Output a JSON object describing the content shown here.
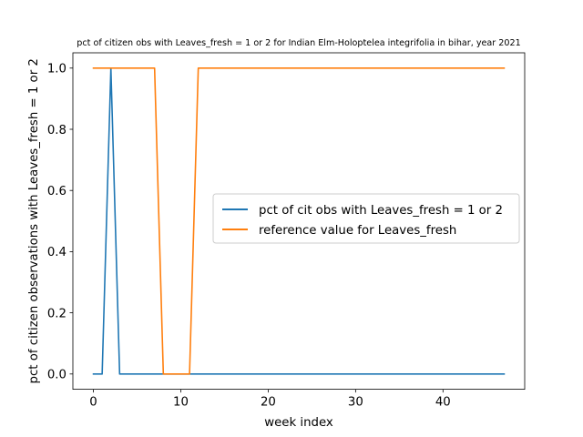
{
  "chart_data": {
    "type": "line",
    "title": "pct of citizen obs with Leaves_fresh = 1 or 2 for Indian Elm-Holoptelea integrifolia in bihar, year 2021",
    "xlabel": "week index",
    "ylabel": "pct of citizen observations with Leaves_fresh = 1 or 2",
    "xlim": [
      -2.35,
      49.35
    ],
    "ylim": [
      -0.05,
      1.05
    ],
    "xticks": [
      0,
      10,
      20,
      30,
      40
    ],
    "xtick_labels": [
      "0",
      "10",
      "20",
      "30",
      "40"
    ],
    "yticks": [
      0.0,
      0.2,
      0.4,
      0.6,
      0.8,
      1.0
    ],
    "ytick_labels": [
      "0.0",
      "0.2",
      "0.4",
      "0.6",
      "0.8",
      "1.0"
    ],
    "grid": false,
    "legend_position": "center-right",
    "x": [
      0,
      1,
      2,
      3,
      4,
      5,
      6,
      7,
      8,
      9,
      10,
      11,
      12,
      13,
      14,
      15,
      16,
      17,
      18,
      19,
      20,
      21,
      22,
      23,
      24,
      25,
      26,
      27,
      28,
      29,
      30,
      31,
      32,
      33,
      34,
      35,
      36,
      37,
      38,
      39,
      40,
      41,
      42,
      43,
      44,
      45,
      46,
      47
    ],
    "series": [
      {
        "name": "pct of cit obs with Leaves_fresh = 1 or 2",
        "color": "#1f77b4",
        "values": [
          0,
          0,
          1,
          0,
          0,
          0,
          0,
          0,
          0,
          0,
          0,
          0,
          0,
          0,
          0,
          0,
          0,
          0,
          0,
          0,
          0,
          0,
          0,
          0,
          0,
          0,
          0,
          0,
          0,
          0,
          0,
          0,
          0,
          0,
          0,
          0,
          0,
          0,
          0,
          0,
          0,
          0,
          0,
          0,
          0,
          0,
          0,
          0
        ]
      },
      {
        "name": "reference value for Leaves_fresh",
        "color": "#ff7f0e",
        "values": [
          1,
          1,
          1,
          1,
          1,
          1,
          1,
          1,
          0,
          0,
          0,
          0,
          1,
          1,
          1,
          1,
          1,
          1,
          1,
          1,
          1,
          1,
          1,
          1,
          1,
          1,
          1,
          1,
          1,
          1,
          1,
          1,
          1,
          1,
          1,
          1,
          1,
          1,
          1,
          1,
          1,
          1,
          1,
          1,
          1,
          1,
          1,
          1
        ]
      }
    ]
  }
}
